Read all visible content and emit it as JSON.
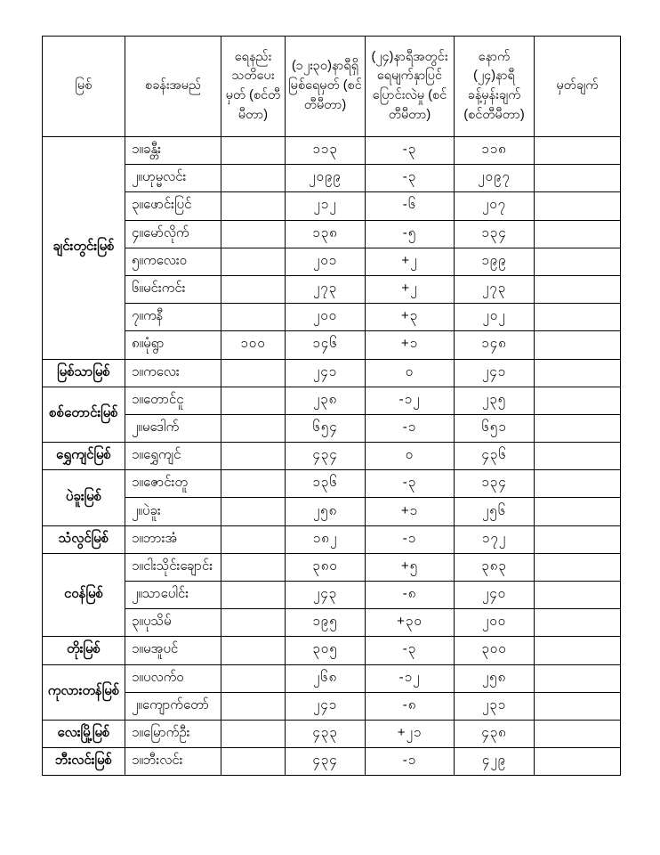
{
  "table": {
    "title_hint": "river water level bulletin table",
    "headers": [
      "မြစ်",
      "စခန်းအမည်",
      "ရေနည်း သတိပေးမှတ် (စင်တီမီတာ)",
      "(၁၂း၃၀)နာရီရှိ မြစ်ရေမှတ် (စင်တီမီတာ)",
      "(၂၄)နာရီအတွင်း ရေမျက်နှာပြင် ပြောင်းလဲမှု (စင်တီမီတာ)",
      "နောက် (၂၄)နာရီ ခန့်မှန်းချက် (စင်တီမီတာ)",
      "မှတ်ချက်"
    ],
    "rivers": [
      {
        "name": "ချင်းတွင်းမြစ်",
        "stations": [
          {
            "station": "၁။ခန္တီး",
            "warning": "",
            "level": "၁၁၃",
            "change": "-၃",
            "forecast": "၁၁၈",
            "remark": ""
          },
          {
            "station": "၂။ဟုမ္မလင်း",
            "warning": "",
            "level": "၂၀၉၉",
            "change": "-၃",
            "forecast": "၂၀၉၇",
            "remark": ""
          },
          {
            "station": "၃။ဖောင်းပြင်",
            "warning": "",
            "level": "၂၁၂",
            "change": "-၆",
            "forecast": "၂၀၇",
            "remark": ""
          },
          {
            "station": "၄။မော်လိုက်",
            "warning": "",
            "level": "၁၃၈",
            "change": "-၅",
            "forecast": "၁၃၄",
            "remark": ""
          },
          {
            "station": "၅။ကလေးဝ",
            "warning": "",
            "level": "၂၀၁",
            "change": "+၂",
            "forecast": "၁၉၉",
            "remark": ""
          },
          {
            "station": "၆။မင်းကင်း",
            "warning": "",
            "level": "၂၇၃",
            "change": "+၂",
            "forecast": "၂၇၃",
            "remark": ""
          },
          {
            "station": "၇။ကနီ",
            "warning": "",
            "level": "၂၀၀",
            "change": "+၃",
            "forecast": "၂၀၂",
            "remark": ""
          },
          {
            "station": "၈။မုံရွာ",
            "warning": "၁၀၀",
            "level": "၁၄၆",
            "change": "+၁",
            "forecast": "၁၄၈",
            "remark": ""
          }
        ]
      },
      {
        "name": "မြစ်သာမြစ်",
        "stations": [
          {
            "station": "၁။ကလေး",
            "warning": "",
            "level": "၂၄၁",
            "change": "၀",
            "forecast": "၂၄၁",
            "remark": ""
          }
        ]
      },
      {
        "name": "စစ်တောင်းမြစ်",
        "stations": [
          {
            "station": "၁။တောင်ငူ",
            "warning": "",
            "level": "၂၃၈",
            "change": "-၁၂",
            "forecast": "၂၃၅",
            "remark": ""
          },
          {
            "station": "၂။မဒေါက်",
            "warning": "",
            "level": "၆၅၄",
            "change": "-၁",
            "forecast": "၆၅၁",
            "remark": ""
          }
        ]
      },
      {
        "name": "ရွှေကျင်မြစ်",
        "stations": [
          {
            "station": "၁။ရွှေကျင်",
            "warning": "",
            "level": "၄၃၄",
            "change": "၀",
            "forecast": "၄၃၆",
            "remark": ""
          }
        ]
      },
      {
        "name": "ပဲခူးမြစ်",
        "stations": [
          {
            "station": "၁။ဇောင်းတူ",
            "warning": "",
            "level": "၁၃၆",
            "change": "-၃",
            "forecast": "၁၃၄",
            "remark": ""
          },
          {
            "station": "၂။ပဲခူး",
            "warning": "",
            "level": "၂၅၈",
            "change": "+၁",
            "forecast": "၂၅၆",
            "remark": ""
          }
        ]
      },
      {
        "name": "သံလွင်မြစ်",
        "stations": [
          {
            "station": "၁။ဘားအံ",
            "warning": "",
            "level": "၁၈၂",
            "change": "-၁",
            "forecast": "၁၇၂",
            "remark": ""
          }
        ]
      },
      {
        "name": "ငဝန်မြစ်",
        "stations": [
          {
            "station": "၁။ငါးသိုင်းချောင်း",
            "warning": "",
            "level": "၃၈၀",
            "change": "+၅",
            "forecast": "၃၈၃",
            "remark": ""
          },
          {
            "station": "၂။သာပေါင်း",
            "warning": "",
            "level": "၂၄၃",
            "change": "-၈",
            "forecast": "၂၄၀",
            "remark": ""
          },
          {
            "station": "၃။ပုသိမ်",
            "warning": "",
            "level": "၁၉၅",
            "change": "+၃၀",
            "forecast": "၂၀၀",
            "remark": ""
          }
        ]
      },
      {
        "name": "တိုးမြစ်",
        "stations": [
          {
            "station": "၁။မအူပင်",
            "warning": "",
            "level": "၃၀၅",
            "change": "-၃",
            "forecast": "၃၀၀",
            "remark": ""
          }
        ]
      },
      {
        "name": "ကုလားတန်မြစ်",
        "stations": [
          {
            "station": "၁။ပလက်ဝ",
            "warning": "",
            "level": "၂၆၈",
            "change": "-၁၂",
            "forecast": "၂၅၈",
            "remark": ""
          },
          {
            "station": "၂။ကျောက်တော်",
            "warning": "",
            "level": "၂၄၁",
            "change": "-၈",
            "forecast": "၂၃၁",
            "remark": ""
          }
        ]
      },
      {
        "name": "လေးမြို့မြစ်",
        "stations": [
          {
            "station": "၁။မြောက်ဦး",
            "warning": "",
            "level": "၄၃၃",
            "change": "+၂၁",
            "forecast": "၄၃၈",
            "remark": ""
          }
        ]
      },
      {
        "name": "ဘီးလင်းမြစ်",
        "stations": [
          {
            "station": "၁။ဘီးလင်း",
            "warning": "",
            "level": "၄၃၄",
            "change": "-၁",
            "forecast": "၄၂၉",
            "remark": ""
          }
        ]
      }
    ]
  }
}
